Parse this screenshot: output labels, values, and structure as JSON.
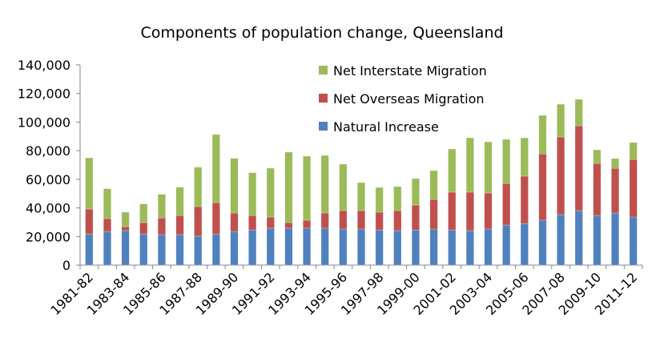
{
  "chart_data": {
    "type": "bar",
    "stacked": true,
    "title": "Components of population change, Queensland",
    "xlabel": "",
    "ylabel": "",
    "ylim": [
      0,
      140000
    ],
    "yticks": [
      0,
      20000,
      40000,
      60000,
      80000,
      100000,
      120000,
      140000
    ],
    "ytick_labels": [
      "0",
      "20,000",
      "40,000",
      "60,000",
      "80,000",
      "100,000",
      "120,000",
      "140,000"
    ],
    "grid": false,
    "legend_position": "top-center",
    "categories": [
      "1981-82",
      "1982-83",
      "1983-84",
      "1984-85",
      "1985-86",
      "1986-87",
      "1987-88",
      "1988-89",
      "1989-90",
      "1990-91",
      "1991-92",
      "1992-93",
      "1993-94",
      "1994-95",
      "1995-96",
      "1996-97",
      "1997-98",
      "1998-99",
      "1999-00",
      "2000-01",
      "2001-02",
      "2002-03",
      "2003-04",
      "2004-05",
      "2005-06",
      "2006-07",
      "2007-08",
      "2008-09",
      "2009-10",
      "2010-11",
      "2011-12"
    ],
    "xtick_labels_shown": [
      "1981-82",
      "1983-84",
      "1985-86",
      "1987-88",
      "1989-90",
      "1991-92",
      "1993-94",
      "1995-96",
      "1997-98",
      "1999-00",
      "2001-02",
      "2003-04",
      "2005-06",
      "2007-08",
      "2009-10",
      "2011-12"
    ],
    "series": [
      {
        "name": "Natural Increase",
        "color": "#4F81BD",
        "values": [
          21800,
          23500,
          24100,
          21800,
          21300,
          21300,
          20200,
          21800,
          23500,
          24600,
          25800,
          25800,
          25800,
          25800,
          25200,
          25200,
          24600,
          24100,
          24600,
          25200,
          24600,
          24100,
          25200,
          28000,
          29100,
          31400,
          35300,
          38100,
          34700,
          36400,
          33600
        ]
      },
      {
        "name": "Net Overseas Migration",
        "color": "#C0504D",
        "values": [
          17400,
          9000,
          2800,
          7900,
          11700,
          13400,
          20700,
          21900,
          12900,
          10100,
          7800,
          3900,
          5600,
          10600,
          12900,
          12900,
          12400,
          14000,
          17400,
          20700,
          26400,
          26900,
          25200,
          29100,
          33100,
          46400,
          54300,
          59300,
          36400,
          31300,
          40300
        ]
      },
      {
        "name": "Net Interstate Migration",
        "color": "#9BBB59",
        "values": [
          35800,
          20900,
          10100,
          13100,
          16500,
          19800,
          27600,
          47600,
          38300,
          29900,
          34200,
          49300,
          44800,
          40300,
          32500,
          19600,
          17300,
          16800,
          18500,
          20200,
          30200,
          38000,
          35800,
          30800,
          26800,
          26900,
          22900,
          18500,
          9500,
          6800,
          11800
        ]
      }
    ],
    "legend": [
      {
        "label": "Net Interstate Migration",
        "color": "#9BBB59"
      },
      {
        "label": "Net Overseas Migration",
        "color": "#C0504D"
      },
      {
        "label": "Natural Increase",
        "color": "#4F81BD"
      }
    ]
  }
}
